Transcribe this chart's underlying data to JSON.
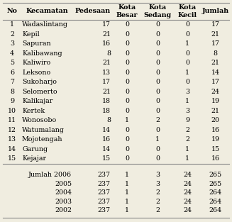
{
  "headers": [
    "No",
    "Kecamatan",
    "Pedesaan",
    "Kota\nBesar",
    "Kota\nSedang",
    "Kota\nKecil",
    "Jumlah"
  ],
  "rows": [
    [
      1,
      "Wadaslintang",
      17,
      0,
      0,
      0,
      17
    ],
    [
      2,
      "Kepil",
      21,
      0,
      0,
      0,
      21
    ],
    [
      3,
      "Sapuran",
      16,
      0,
      0,
      1,
      17
    ],
    [
      4,
      "Kalibawang",
      8,
      0,
      0,
      0,
      8
    ],
    [
      5,
      "Kaliwiro",
      21,
      0,
      0,
      0,
      21
    ],
    [
      6,
      "Leksono",
      13,
      0,
      0,
      1,
      14
    ],
    [
      7,
      "Sukoharjo",
      17,
      0,
      0,
      0,
      17
    ],
    [
      8,
      "Selomerto",
      21,
      0,
      0,
      3,
      24
    ],
    [
      9,
      "Kalikajar",
      18,
      0,
      0,
      1,
      19
    ],
    [
      10,
      "Kertek",
      18,
      0,
      0,
      3,
      21
    ],
    [
      11,
      "Wonosobo",
      8,
      1,
      2,
      9,
      20
    ],
    [
      12,
      "Watumalang",
      14,
      0,
      0,
      2,
      16
    ],
    [
      13,
      "Mojotengah",
      16,
      0,
      1,
      2,
      19
    ],
    [
      14,
      "Garung",
      14,
      0,
      0,
      1,
      15
    ],
    [
      15,
      "Kejajar",
      15,
      0,
      0,
      1,
      16
    ]
  ],
  "summary_rows": [
    [
      "Jumlah 2006",
      237,
      1,
      3,
      24,
      265
    ],
    [
      "2005",
      237,
      1,
      3,
      24,
      265
    ],
    [
      "2004",
      237,
      1,
      2,
      24,
      264
    ],
    [
      "2003",
      237,
      1,
      2,
      24,
      264
    ],
    [
      "2002",
      237,
      1,
      2,
      24,
      264
    ]
  ],
  "bg_color": "#f0ede0",
  "header_fontsize": 6.8,
  "body_fontsize": 6.8,
  "line_color": "#888888"
}
